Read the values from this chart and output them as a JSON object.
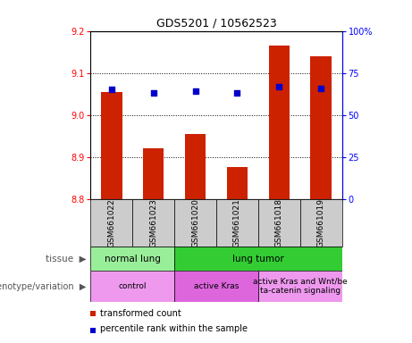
{
  "title": "GDS5201 / 10562523",
  "samples": [
    "GSM661022",
    "GSM661023",
    "GSM661020",
    "GSM661021",
    "GSM661018",
    "GSM661019"
  ],
  "transformed_count": [
    9.055,
    8.92,
    8.955,
    8.875,
    9.165,
    9.14
  ],
  "percentile_rank": [
    65,
    63,
    64,
    63,
    67,
    66
  ],
  "ylim_left": [
    8.8,
    9.2
  ],
  "ylim_right": [
    0,
    100
  ],
  "yticks_left": [
    8.8,
    8.9,
    9.0,
    9.1,
    9.2
  ],
  "yticks_right": [
    0,
    25,
    50,
    75,
    100
  ],
  "bar_color": "#cc2200",
  "dot_color": "#0000cc",
  "tissue_labels": [
    {
      "label": "normal lung",
      "span": [
        0,
        2
      ],
      "color": "#99ee99"
    },
    {
      "label": "lung tumor",
      "span": [
        2,
        6
      ],
      "color": "#33cc33"
    }
  ],
  "genotype_labels": [
    {
      "label": "control",
      "span": [
        0,
        2
      ],
      "color": "#ee99ee"
    },
    {
      "label": "active Kras",
      "span": [
        2,
        4
      ],
      "color": "#dd66dd"
    },
    {
      "label": "active Kras and Wnt/be\nta-catenin signaling",
      "span": [
        4,
        6
      ],
      "color": "#ee99ee"
    }
  ],
  "legend_items": [
    {
      "label": "transformed count",
      "color": "#cc2200"
    },
    {
      "label": "percentile rank within the sample",
      "color": "#0000cc"
    }
  ],
  "background_color": "#ffffff",
  "sample_bg": "#cccccc"
}
